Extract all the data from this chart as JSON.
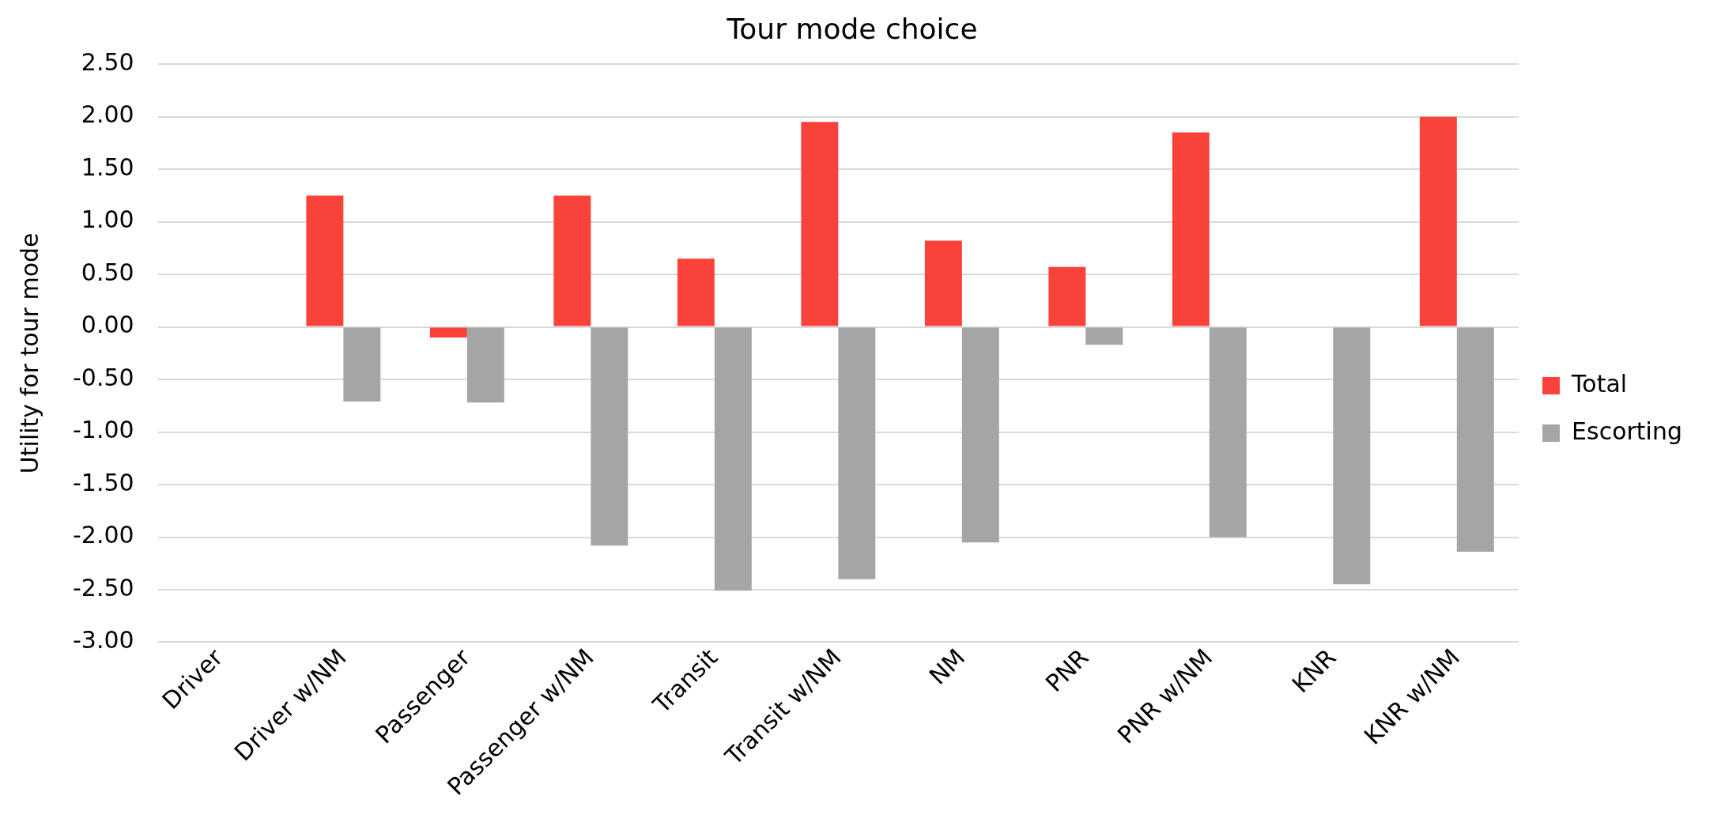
{
  "chart_data": {
    "type": "bar",
    "title": "Tour mode choice",
    "ylabel": "Utility for tour mode",
    "categories": [
      "Driver",
      "Driver w/NM",
      "Passenger",
      "Passenger w/NM",
      "Transit",
      "Transit w/NM",
      "NM",
      "PNR",
      "PNR w/NM",
      "KNR",
      "KNR w/NM"
    ],
    "series": [
      {
        "name": "Total",
        "color": "#f9423a",
        "values": [
          null,
          1.25,
          -0.1,
          1.25,
          0.65,
          1.95,
          0.82,
          0.57,
          1.85,
          null,
          2.0
        ]
      },
      {
        "name": "Escorting",
        "color": "#a5a5a5",
        "values": [
          null,
          -0.71,
          -0.72,
          -2.08,
          -2.51,
          -2.4,
          -2.05,
          -0.17,
          -2.0,
          -2.45,
          -2.14
        ]
      }
    ],
    "ylim": [
      -3,
      2.5
    ],
    "yticks": [
      {
        "value": -3,
        "label": "-3.00"
      },
      {
        "value": -2.5,
        "label": "-2.50"
      },
      {
        "value": -2,
        "label": "-2.00"
      },
      {
        "value": -1.5,
        "label": "-1.50"
      },
      {
        "value": -1,
        "label": "-1.00"
      },
      {
        "value": -0.5,
        "label": "-0.50"
      },
      {
        "value": 0,
        "label": "0.00"
      },
      {
        "value": 0.5,
        "label": "0.50"
      },
      {
        "value": 1,
        "label": "1.00"
      },
      {
        "value": 1.5,
        "label": "1.50"
      },
      {
        "value": 2,
        "label": "2.00"
      },
      {
        "value": 2.5,
        "label": "2.50"
      }
    ],
    "grid": "y",
    "legend": "right"
  }
}
